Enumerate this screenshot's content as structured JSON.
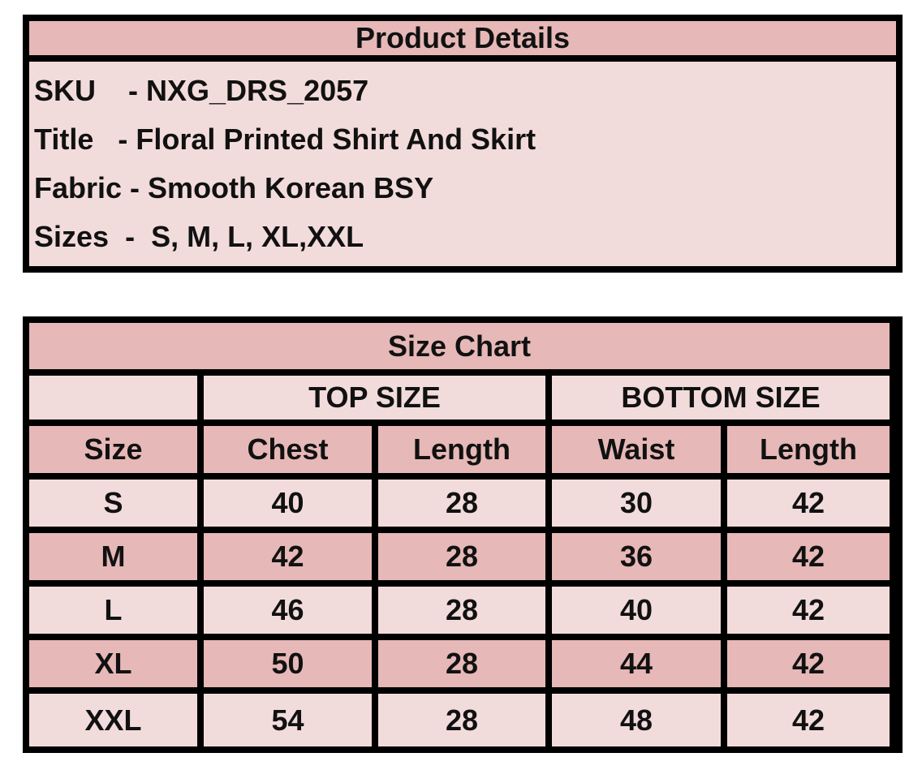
{
  "product_details": {
    "title": "Product Details",
    "fields": [
      {
        "label": "SKU",
        "sep": "    - ",
        "value": "NXG_DRS_2057"
      },
      {
        "label": "Title",
        "sep": "   - ",
        "value": "Floral Printed Shirt And Skirt"
      },
      {
        "label": "Fabric",
        "sep": " - ",
        "value": "Smooth Korean BSY"
      },
      {
        "label": "Sizes",
        "sep": "  -  ",
        "value": "S, M, L, XL,XXL"
      }
    ]
  },
  "size_chart": {
    "title": "Size Chart",
    "groups": [
      "TOP SIZE",
      "BOTTOM SIZE"
    ],
    "columns": [
      "Size",
      "Chest",
      "Length",
      "Waist",
      "Length"
    ],
    "rows": [
      [
        "S",
        "40",
        "28",
        "30",
        "42"
      ],
      [
        "M",
        "42",
        "28",
        "36",
        "42"
      ],
      [
        "L",
        "46",
        "28",
        "40",
        "42"
      ],
      [
        "XL",
        "50",
        "28",
        "44",
        "42"
      ],
      [
        "XXL",
        "54",
        "28",
        "48",
        "42"
      ]
    ]
  },
  "colors": {
    "header": "#e6b8b7",
    "light": "#f2dcdb",
    "border": "#000000"
  }
}
